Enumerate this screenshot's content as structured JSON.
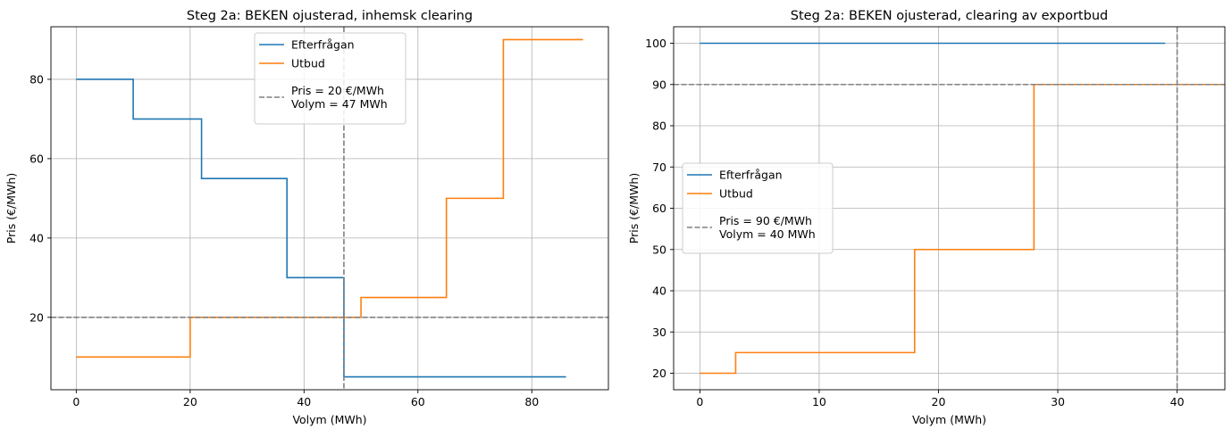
{
  "chart_data": [
    {
      "type": "line",
      "step": "post",
      "title": "Steg 2a: BEKEN ojusterad, inhemsk clearing",
      "xlabel": "Volym (MWh)",
      "ylabel": "Pris (€/MWh)",
      "xlim": [
        -4.45,
        93.45
      ],
      "ylim": [
        1.75,
        93.25
      ],
      "xticks": [
        0,
        20,
        40,
        60,
        80
      ],
      "yticks": [
        20,
        40,
        60,
        80
      ],
      "grid": true,
      "legend_position": "upper center",
      "series": [
        {
          "name": "Efterfrågan",
          "color": "#1f77b4",
          "x": [
            0,
            10,
            22,
            37,
            47,
            86
          ],
          "y": [
            80,
            70,
            55,
            30,
            5,
            5
          ]
        },
        {
          "name": "Utbud",
          "color": "#ff7f0e",
          "x": [
            0,
            20,
            50,
            65,
            75,
            89
          ],
          "y": [
            10,
            20,
            25,
            50,
            90,
            90
          ]
        }
      ],
      "clearing": {
        "label": "Pris = 20 €/MWh\nVolym = 47 MWh",
        "price": 20,
        "volume": 47,
        "color": "#808080"
      }
    },
    {
      "type": "line",
      "step": "post",
      "title": "Steg 2a: BEKEN ojusterad, clearing av exportbud",
      "xlabel": "Volym (MWh)",
      "ylabel": "Pris (€/MWh)",
      "xlim": [
        -2.2,
        44
      ],
      "ylim": [
        16,
        104
      ],
      "xticks": [
        0,
        10,
        20,
        30,
        40
      ],
      "yticks": [
        20,
        30,
        40,
        50,
        60,
        70,
        80,
        90,
        100
      ],
      "grid": true,
      "legend_position": "center left",
      "series": [
        {
          "name": "Efterfrågan",
          "color": "#1f77b4",
          "x": [
            0,
            39
          ],
          "y": [
            100,
            100
          ]
        },
        {
          "name": "Utbud",
          "color": "#ff7f0e",
          "x": [
            0,
            3,
            18,
            28,
            44
          ],
          "y": [
            20,
            25,
            50,
            90,
            90
          ]
        }
      ],
      "clearing": {
        "label": "Pris = 90 €/MWh\nVolym = 40 MWh",
        "price": 90,
        "volume": 40,
        "color": "#808080"
      }
    }
  ]
}
